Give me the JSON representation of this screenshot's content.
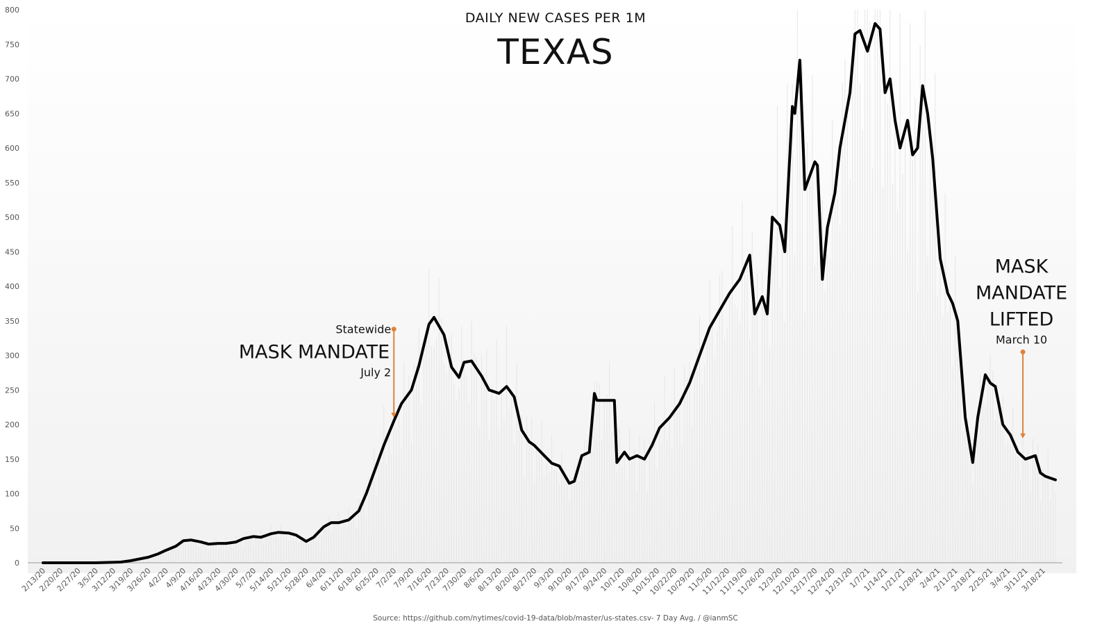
{
  "chart_data": {
    "type": "line",
    "title": "TEXAS",
    "subtitle": "DAILY NEW CASES PER 1M",
    "source": "Source: https://github.com/nytimes/covid-19-data/blob/master/us-states.csv- 7 Day Avg. / @ianmSC",
    "ylim": [
      0,
      800
    ],
    "y_ticks": [
      0,
      50,
      100,
      150,
      200,
      250,
      300,
      350,
      400,
      450,
      500,
      550,
      600,
      650,
      700,
      750,
      800
    ],
    "x_range": [
      "2020-02-13",
      "2021-03-23"
    ],
    "x_tick_labels": [
      "2/13/20",
      "2/20/20",
      "2/27/20",
      "3/5/20",
      "3/12/20",
      "3/19/20",
      "3/26/20",
      "4/2/20",
      "4/9/20",
      "4/16/20",
      "4/23/20",
      "4/30/20",
      "5/7/20",
      "5/14/20",
      "5/21/20",
      "5/28/20",
      "6/4/20",
      "6/11/20",
      "6/18/20",
      "6/25/20",
      "7/2/20",
      "7/9/20",
      "7/16/20",
      "7/23/20",
      "7/30/20",
      "8/6/20",
      "8/13/20",
      "8/20/20",
      "8/27/20",
      "9/3/20",
      "9/10/20",
      "9/17/20",
      "9/24/20",
      "10/1/20",
      "10/8/20",
      "10/15/20",
      "10/22/20",
      "10/29/20",
      "11/5/20",
      "11/12/20",
      "11/19/20",
      "11/26/20",
      "12/3/20",
      "12/10/20",
      "12/17/20",
      "12/24/20",
      "12/31/20",
      "1/7/21",
      "1/14/21",
      "1/21/21",
      "1/28/21",
      "2/4/21",
      "2/11/21",
      "2/18/21",
      "2/25/21",
      "3/4/21",
      "3/11/21",
      "3/18/21"
    ],
    "grid": false,
    "line_color": "#000000",
    "daily_bar_color": "#e6e6e6",
    "annotation_color": "#e0823a",
    "series": [
      {
        "name": "",
        "x": [
          "2020-02-13",
          "2020-03-05",
          "2020-03-15",
          "2020-03-19",
          "2020-03-26",
          "2020-03-30",
          "2020-04-02",
          "2020-04-06",
          "2020-04-09",
          "2020-04-12",
          "2020-04-16",
          "2020-04-19",
          "2020-04-23",
          "2020-04-26",
          "2020-04-30",
          "2020-05-03",
          "2020-05-07",
          "2020-05-10",
          "2020-05-14",
          "2020-05-17",
          "2020-05-21",
          "2020-05-24",
          "2020-05-28",
          "2020-05-31",
          "2020-06-04",
          "2020-06-07",
          "2020-06-10",
          "2020-06-14",
          "2020-06-18",
          "2020-06-21",
          "2020-06-25",
          "2020-06-28",
          "2020-07-02",
          "2020-07-05",
          "2020-07-09",
          "2020-07-12",
          "2020-07-16",
          "2020-07-18",
          "2020-07-22",
          "2020-07-25",
          "2020-07-28",
          "2020-07-30",
          "2020-08-02",
          "2020-08-06",
          "2020-08-09",
          "2020-08-13",
          "2020-08-16",
          "2020-08-19",
          "2020-08-22",
          "2020-08-25",
          "2020-08-27",
          "2020-08-31",
          "2020-09-03",
          "2020-09-06",
          "2020-09-10",
          "2020-09-12",
          "2020-09-15",
          "2020-09-18",
          "2020-09-20",
          "2020-09-21",
          "2020-09-23",
          "2020-09-28",
          "2020-09-29",
          "2020-10-02",
          "2020-10-04",
          "2020-10-07",
          "2020-10-10",
          "2020-10-13",
          "2020-10-16",
          "2020-10-20",
          "2020-10-24",
          "2020-10-28",
          "2020-11-01",
          "2020-11-05",
          "2020-11-09",
          "2020-11-13",
          "2020-11-17",
          "2020-11-21",
          "2020-11-23",
          "2020-11-26",
          "2020-11-28",
          "2020-11-30",
          "2020-12-03",
          "2020-12-05",
          "2020-12-08",
          "2020-12-09",
          "2020-12-11",
          "2020-12-13",
          "2020-12-17",
          "2020-12-18",
          "2020-12-20",
          "2020-12-22",
          "2020-12-25",
          "2020-12-27",
          "2020-12-29",
          "2020-12-31",
          "2021-01-02",
          "2021-01-04",
          "2021-01-07",
          "2021-01-10",
          "2021-01-12",
          "2021-01-14",
          "2021-01-16",
          "2021-01-18",
          "2021-01-20",
          "2021-01-23",
          "2021-01-25",
          "2021-01-27",
          "2021-01-29",
          "2021-01-31",
          "2021-02-02",
          "2021-02-05",
          "2021-02-08",
          "2021-02-10",
          "2021-02-12",
          "2021-02-15",
          "2021-02-18",
          "2021-02-20",
          "2021-02-23",
          "2021-02-25",
          "2021-02-27",
          "2021-03-02",
          "2021-03-05",
          "2021-03-08",
          "2021-03-11",
          "2021-03-15",
          "2021-03-17",
          "2021-03-19",
          "2021-03-23"
        ],
        "y": [
          0,
          0,
          1,
          3,
          8,
          13,
          18,
          24,
          32,
          33,
          30,
          27,
          28,
          28,
          30,
          35,
          38,
          37,
          42,
          44,
          43,
          40,
          31,
          37,
          52,
          58,
          58,
          62,
          75,
          100,
          140,
          170,
          205,
          230,
          250,
          285,
          345,
          355,
          330,
          283,
          268,
          290,
          292,
          270,
          250,
          245,
          255,
          240,
          192,
          175,
          170,
          155,
          144,
          140,
          115,
          118,
          155,
          160,
          245,
          235,
          235,
          235,
          145,
          160,
          150,
          155,
          150,
          170,
          195,
          210,
          230,
          260,
          300,
          340,
          365,
          390,
          410,
          445,
          360,
          385,
          360,
          500,
          488,
          450,
          660,
          650,
          727,
          540,
          580,
          575,
          410,
          485,
          535,
          600,
          640,
          680,
          765,
          770,
          740,
          780,
          772,
          680,
          700,
          640,
          600,
          640,
          590,
          600,
          690,
          650,
          585,
          440,
          390,
          375,
          350,
          210,
          145,
          210,
          272,
          260,
          255,
          200,
          185,
          160,
          150,
          155,
          130,
          125,
          120
        ]
      }
    ],
    "annotations": [
      {
        "label_top": "Statewide",
        "label_main": "MASK MANDATE",
        "label_date": "July 2",
        "x": "2020-07-02",
        "y_from": 338,
        "y_to": 210
      },
      {
        "label_lines": [
          "MASK",
          "MANDATE",
          "LIFTED"
        ],
        "label_date": "March 10",
        "x": "2021-03-10",
        "y_from": 305,
        "y_to": 180
      }
    ]
  }
}
